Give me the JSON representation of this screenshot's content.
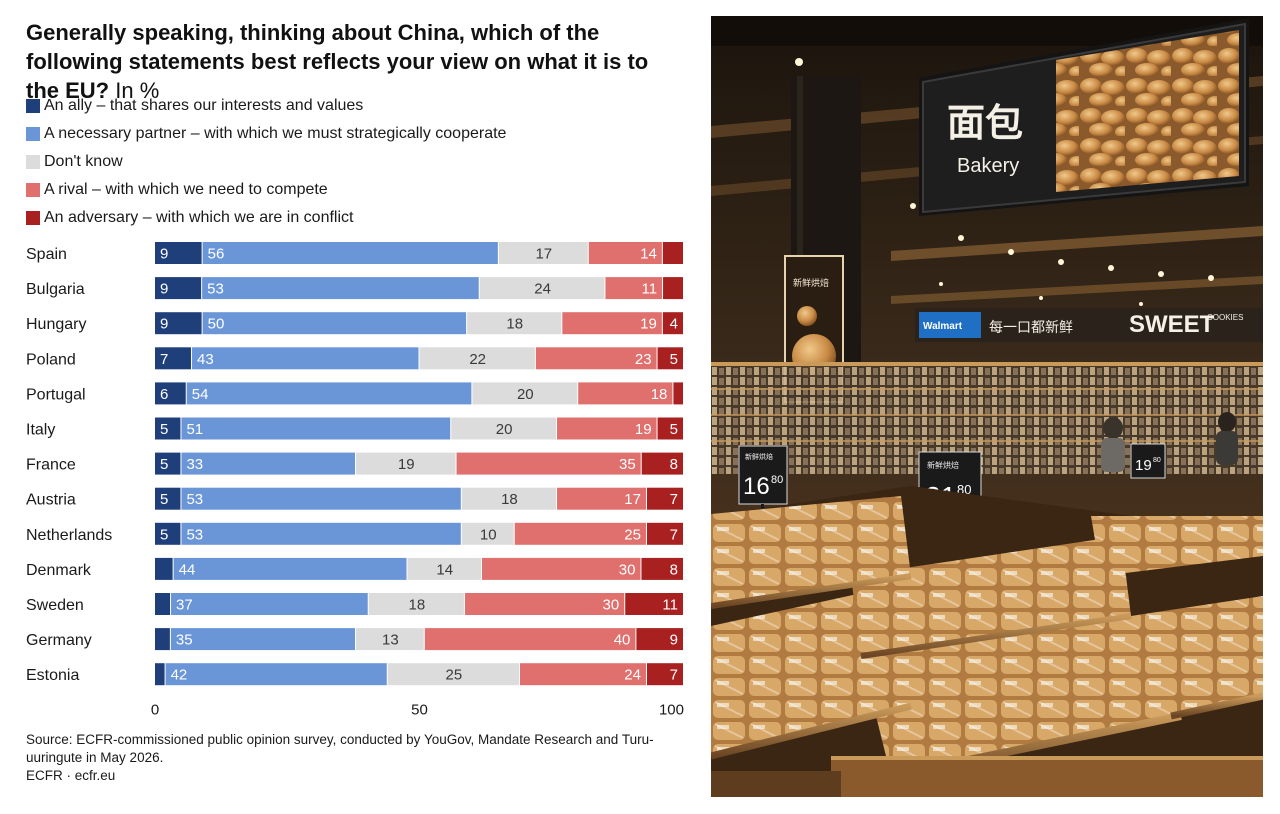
{
  "title": "Generally speaking, thinking about China, which of the following statements best reflects your view on what it is to the EU?",
  "title_unit": "In %",
  "colors": {
    "ally": "#1f3f7a",
    "partner": "#6a96d8",
    "dont_know": "#dcdcdc",
    "rival": "#e0706e",
    "adversary": "#a8201f"
  },
  "chart_data": {
    "type": "bar",
    "orientation": "horizontal-stacked",
    "xlim": [
      0,
      100
    ],
    "x_ticks": [
      "0",
      "50",
      "100"
    ],
    "categories": [
      "Spain",
      "Bulgaria",
      "Hungary",
      "Poland",
      "Portugal",
      "Italy",
      "France",
      "Austria",
      "Netherlands",
      "Denmark",
      "Sweden",
      "Germany",
      "Estonia"
    ],
    "series": [
      {
        "name": "An ally – that shares our interests and values",
        "key": "ally",
        "values": [
          9,
          9,
          9,
          7,
          6,
          5,
          5,
          5,
          5,
          3.5,
          3,
          3,
          2
        ],
        "labels": [
          "9",
          "9",
          "9",
          "7",
          "6",
          "5",
          "5",
          "5",
          "5",
          "",
          "",
          "",
          ""
        ]
      },
      {
        "name": "A necessary partner – with which we must strategically cooperate",
        "key": "partner",
        "values": [
          56,
          53,
          50,
          43,
          54,
          51,
          33,
          53,
          53,
          44,
          37,
          35,
          42
        ],
        "labels": [
          "56",
          "53",
          "50",
          "43",
          "54",
          "51",
          "33",
          "53",
          "53",
          "44",
          "37",
          "35",
          "42"
        ]
      },
      {
        "name": "Don't know",
        "key": "dont_know",
        "values": [
          17,
          24,
          18,
          22,
          20,
          20,
          19,
          18,
          10,
          14,
          18,
          13,
          25
        ],
        "labels": [
          "17",
          "24",
          "18",
          "22",
          "20",
          "20",
          "19",
          "18",
          "10",
          "14",
          "18",
          "13",
          "25"
        ]
      },
      {
        "name": "A rival – with which we need to compete",
        "key": "rival",
        "values": [
          14,
          11,
          19,
          23,
          18,
          19,
          35,
          17,
          25,
          30,
          30,
          40,
          24
        ],
        "labels": [
          "14",
          "11",
          "19",
          "23",
          "18",
          "19",
          "35",
          "17",
          "25",
          "30",
          "30",
          "40",
          "24"
        ]
      },
      {
        "name": "An adversary – with which we are in conflict",
        "key": "adversary",
        "values": [
          4,
          4,
          4,
          5,
          2,
          5,
          8,
          7,
          7,
          8,
          11,
          9,
          7
        ],
        "labels": [
          "",
          "",
          "4",
          "5",
          "",
          "5",
          "8",
          "7",
          "7",
          "8",
          "11",
          "9",
          "7"
        ]
      }
    ]
  },
  "footnote": {
    "source": "Source: ECFR-commissioned public opinion survey, conducted by YouGov, Mandate Research and Turu-uuringute in May 2026.",
    "credit": "ECFR · ecfr.eu"
  },
  "photo": {
    "sign_chinese": "面包",
    "sign_english": "Bakery",
    "banner_walmart": "Walmart",
    "banner_chinese": "每一口都新鲜",
    "banner_sweet": "SWEET",
    "banner_cookies": "COOKIES",
    "poster_text": "新鲜烘焙",
    "price_1": "16",
    "price_1_cents": "80",
    "price_2": "21",
    "price_2_cents": "80",
    "price_3": "19",
    "price_3_cents": "80",
    "price_tag_label": "新鲜烘焙"
  }
}
